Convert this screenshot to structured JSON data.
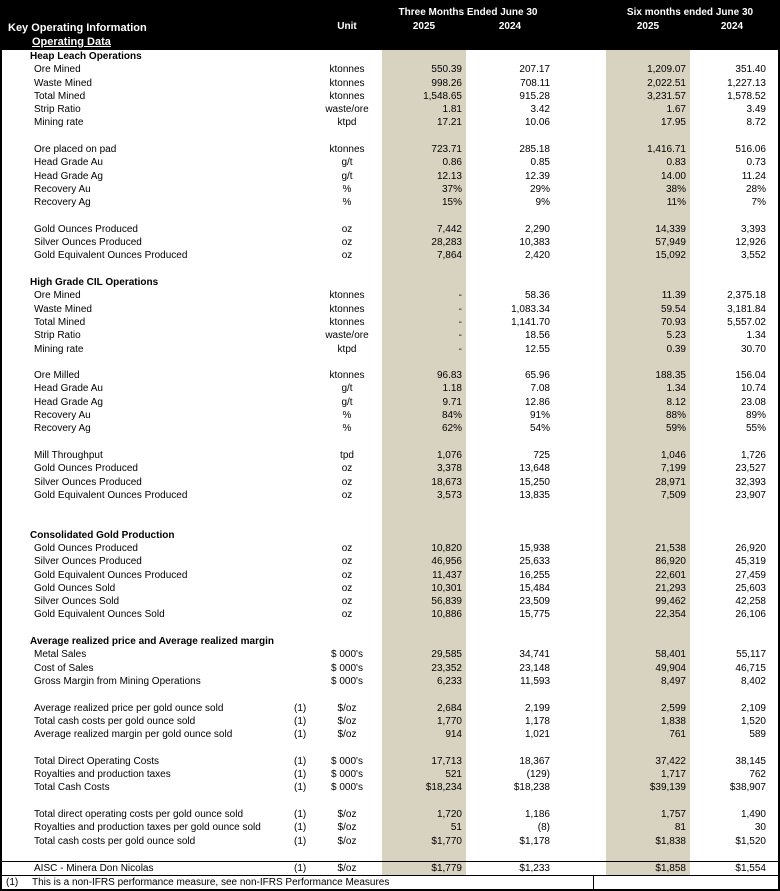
{
  "header": {
    "title": "Key Operating Information",
    "subtitle": "Operating Data",
    "group1": "Three Months Ended June 30",
    "group2": "Six months ended June 30",
    "unit_label": "Unit",
    "years": [
      "2025",
      "2024",
      "2025",
      "2024"
    ]
  },
  "table": {
    "rows": [
      {
        "type": "section",
        "label": "Heap Leach Operations"
      },
      {
        "type": "row",
        "label": "Ore Mined",
        "unit": "ktonnes",
        "values": [
          "550.39",
          "207.17",
          "1,209.07",
          "351.40"
        ]
      },
      {
        "type": "row",
        "label": "Waste Mined",
        "unit": "ktonnes",
        "values": [
          "998.26",
          "708.11",
          "2,022.51",
          "1,227.13"
        ]
      },
      {
        "type": "row",
        "label": "Total Mined",
        "unit": "ktonnes",
        "values": [
          "1,548.65",
          "915.28",
          "3,231.57",
          "1,578.52"
        ]
      },
      {
        "type": "row",
        "label": "Strip Ratio",
        "unit": "waste/ore",
        "values": [
          "1.81",
          "3.42",
          "1.67",
          "3.49"
        ]
      },
      {
        "type": "row",
        "label": "Mining rate",
        "unit": "ktpd",
        "values": [
          "17.21",
          "10.06",
          "17.95",
          "8.72"
        ]
      },
      {
        "type": "blank"
      },
      {
        "type": "row",
        "label": "Ore placed on pad",
        "unit": "ktonnes",
        "values": [
          "723.71",
          "285.18",
          "1,416.71",
          "516.06"
        ]
      },
      {
        "type": "row",
        "label": "Head Grade Au",
        "unit": "g/t",
        "values": [
          "0.86",
          "0.85",
          "0.83",
          "0.73"
        ]
      },
      {
        "type": "row",
        "label": "Head Grade Ag",
        "unit": "g/t",
        "values": [
          "12.13",
          "12.39",
          "14.00",
          "11.24"
        ]
      },
      {
        "type": "row",
        "label": "Recovery Au",
        "unit": "%",
        "values": [
          "37%",
          "29%",
          "38%",
          "28%"
        ]
      },
      {
        "type": "row",
        "label": "Recovery Ag",
        "unit": "%",
        "values": [
          "15%",
          "9%",
          "11%",
          "7%"
        ]
      },
      {
        "type": "blank"
      },
      {
        "type": "row",
        "label": "Gold Ounces Produced",
        "unit": "oz",
        "values": [
          "7,442",
          "2,290",
          "14,339",
          "3,393"
        ]
      },
      {
        "type": "row",
        "label": "Silver Ounces Produced",
        "unit": "oz",
        "values": [
          "28,283",
          "10,383",
          "57,949",
          "12,926"
        ]
      },
      {
        "type": "row",
        "label": "Gold Equivalent Ounces Produced",
        "unit": "oz",
        "values": [
          "7,864",
          "2,420",
          "15,092",
          "3,552"
        ]
      },
      {
        "type": "blank"
      },
      {
        "type": "section",
        "label": "High Grade CIL Operations"
      },
      {
        "type": "row",
        "label": "Ore Mined",
        "unit": "ktonnes",
        "values": [
          "-",
          "58.36",
          "11.39",
          "2,375.18"
        ]
      },
      {
        "type": "row",
        "label": "Waste Mined",
        "unit": "ktonnes",
        "values": [
          "-",
          "1,083.34",
          "59.54",
          "3,181.84"
        ]
      },
      {
        "type": "row",
        "label": "Total Mined",
        "unit": "ktonnes",
        "values": [
          "-",
          "1,141.70",
          "70.93",
          "5,557.02"
        ]
      },
      {
        "type": "row",
        "label": "Strip Ratio",
        "unit": "waste/ore",
        "values": [
          "-",
          "18.56",
          "5.23",
          "1.34"
        ]
      },
      {
        "type": "row",
        "label": "Mining rate",
        "unit": "ktpd",
        "values": [
          "-",
          "12.55",
          "0.39",
          "30.70"
        ]
      },
      {
        "type": "blank"
      },
      {
        "type": "row",
        "label": "Ore Milled",
        "unit": "ktonnes",
        "values": [
          "96.83",
          "65.96",
          "188.35",
          "156.04"
        ]
      },
      {
        "type": "row",
        "label": "Head Grade Au",
        "unit": "g/t",
        "values": [
          "1.18",
          "7.08",
          "1.34",
          "10.74"
        ]
      },
      {
        "type": "row",
        "label": "Head Grade Ag",
        "unit": "g/t",
        "values": [
          "9.71",
          "12.86",
          "8.12",
          "23.08"
        ]
      },
      {
        "type": "row",
        "label": "Recovery Au",
        "unit": "%",
        "values": [
          "84%",
          "91%",
          "88%",
          "89%"
        ]
      },
      {
        "type": "row",
        "label": "Recovery Ag",
        "unit": "%",
        "values": [
          "62%",
          "54%",
          "59%",
          "55%"
        ]
      },
      {
        "type": "blank"
      },
      {
        "type": "row",
        "label": "Mill Throughput",
        "unit": "tpd",
        "values": [
          "1,076",
          "725",
          "1,046",
          "1,726"
        ]
      },
      {
        "type": "row",
        "label": "Gold Ounces Produced",
        "unit": "oz",
        "values": [
          "3,378",
          "13,648",
          "7,199",
          "23,527"
        ]
      },
      {
        "type": "row",
        "label": "Silver Ounces Produced",
        "unit": "oz",
        "values": [
          "18,673",
          "15,250",
          "28,971",
          "32,393"
        ]
      },
      {
        "type": "row",
        "label": "Gold Equivalent Ounces Produced",
        "unit": "oz",
        "values": [
          "3,573",
          "13,835",
          "7,509",
          "23,907"
        ]
      },
      {
        "type": "blank"
      },
      {
        "type": "blank"
      },
      {
        "type": "section",
        "label": "Consolidated Gold Production"
      },
      {
        "type": "row",
        "label": "Gold Ounces Produced",
        "unit": "oz",
        "values": [
          "10,820",
          "15,938",
          "21,538",
          "26,920"
        ]
      },
      {
        "type": "row",
        "label": "Silver Ounces Produced",
        "unit": "oz",
        "values": [
          "46,956",
          "25,633",
          "86,920",
          "45,319"
        ]
      },
      {
        "type": "row",
        "label": "Gold Equivalent Ounces Produced",
        "unit": "oz",
        "values": [
          "11,437",
          "16,255",
          "22,601",
          "27,459"
        ]
      },
      {
        "type": "row",
        "label": "Gold Ounces Sold",
        "unit": "oz",
        "values": [
          "10,301",
          "15,484",
          "21,293",
          "25,603"
        ]
      },
      {
        "type": "row",
        "label": "Silver Ounces Sold",
        "unit": "oz",
        "values": [
          "56,839",
          "23,509",
          "99,462",
          "42,258"
        ]
      },
      {
        "type": "row",
        "label": "Gold Equivalent Ounces Sold",
        "unit": "oz",
        "values": [
          "10,886",
          "15,775",
          "22,354",
          "26,106"
        ]
      },
      {
        "type": "blank"
      },
      {
        "type": "section",
        "label": "Average realized price and Average realized margin"
      },
      {
        "type": "row",
        "label": "Metal Sales",
        "unit": "$ 000's",
        "values": [
          "29,585",
          "34,741",
          "58,401",
          "55,117"
        ]
      },
      {
        "type": "row",
        "label": "Cost of Sales",
        "unit": "$ 000's",
        "values": [
          "23,352",
          "23,148",
          "49,904",
          "46,715"
        ]
      },
      {
        "type": "row",
        "label": "Gross Margin from Mining Operations",
        "unit": "$ 000's",
        "values": [
          "6,233",
          "11,593",
          "8,497",
          "8,402"
        ]
      },
      {
        "type": "blank"
      },
      {
        "type": "row",
        "label": "Average realized price per gold ounce sold",
        "note": "(1)",
        "unit": "$/oz",
        "values": [
          "2,684",
          "2,199",
          "2,599",
          "2,109"
        ]
      },
      {
        "type": "row",
        "label": "Total cash costs per gold ounce sold",
        "note": "(1)",
        "unit": "$/oz",
        "values": [
          "1,770",
          "1,178",
          "1,838",
          "1,520"
        ]
      },
      {
        "type": "row",
        "label": "Average realized margin per gold ounce sold",
        "note": "(1)",
        "unit": "$/oz",
        "values": [
          "914",
          "1,021",
          "761",
          "589"
        ]
      },
      {
        "type": "blank"
      },
      {
        "type": "row",
        "label": "Total Direct Operating Costs",
        "note": "(1)",
        "unit": "$ 000's",
        "values": [
          "17,713",
          "18,367",
          "37,422",
          "38,145"
        ]
      },
      {
        "type": "row",
        "label": "Royalties and production taxes",
        "note": "(1)",
        "unit": "$ 000's",
        "values": [
          "521",
          "(129)",
          "1,717",
          "762"
        ]
      },
      {
        "type": "row",
        "label": "Total Cash Costs",
        "note": "(1)",
        "unit": "$ 000's",
        "values": [
          "$18,234",
          "$18,238",
          "$39,139",
          "$38,907"
        ]
      },
      {
        "type": "blank"
      },
      {
        "type": "row",
        "label": "Total direct operating costs per gold ounce sold",
        "note": "(1)",
        "unit": "$/oz",
        "values": [
          "1,720",
          "1,186",
          "1,757",
          "1,490"
        ]
      },
      {
        "type": "row",
        "label": "Royalties and production taxes per gold ounce sold",
        "note": "(1)",
        "unit": "$/oz",
        "values": [
          "51",
          "(8)",
          "81",
          "30"
        ]
      },
      {
        "type": "row",
        "label": "Total cash costs per gold ounce sold",
        "note": "(1)",
        "unit": "$/oz",
        "values": [
          "$1,770",
          "$1,178",
          "$1,838",
          "$1,520"
        ]
      },
      {
        "type": "blank"
      },
      {
        "type": "row",
        "label": "AISC - Minera Don Nicolas",
        "note": "(1)",
        "unit": "$/oz",
        "values": [
          "$1,779",
          "$1,233",
          "$1,858",
          "$1,554"
        ],
        "rule_top": true,
        "rule_bottom": true
      }
    ]
  },
  "footnote": {
    "marker": "(1)",
    "text": "This is a non-IFRS performance measure, see non-IFRS Performance Measures"
  },
  "colors": {
    "highlight": "#d8d2c0",
    "header_bg": "#000000",
    "header_fg": "#ffffff"
  }
}
